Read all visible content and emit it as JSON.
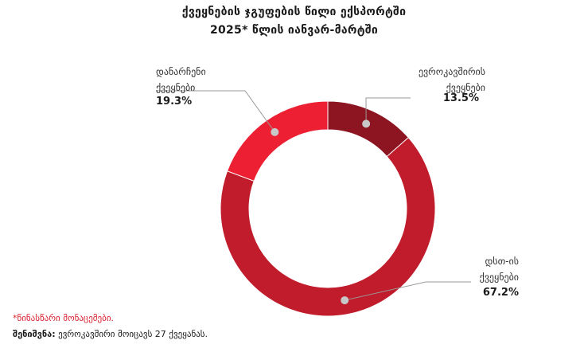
{
  "chart_data": {
    "type": "pie",
    "title": "ქვეყნების ჯგუფების წილი ექსპორტში",
    "subtitle": "2025* წლის იანვარ-მარტში",
    "categories": [
      "ევროკავშირის\nქვეყნები",
      "დსთ-ის\nქვეყნები",
      "დანარჩენი\nქვეყნები"
    ],
    "values": [
      13.5,
      67.2,
      19.3
    ],
    "value_labels": [
      "13.5%",
      "67.2%",
      "19.3%"
    ],
    "colors": [
      "#8c1521",
      "#c01c2b",
      "#ec1f33"
    ],
    "donut": true
  },
  "labels": {
    "eu_line1": "ევროკავშირის",
    "eu_line2": "ქვეყნები",
    "cis_line1": "დსთ-ის",
    "cis_line2": "ქვეყნები",
    "other_line1": "დანარჩენი",
    "other_line2": "ქვეყნები"
  },
  "footnote": "*წინასწარი მონაცემები.",
  "note_label": "შენიშვნა:",
  "note_text": " ევროკავშირი მოიცავს 27 ქვეყანას."
}
